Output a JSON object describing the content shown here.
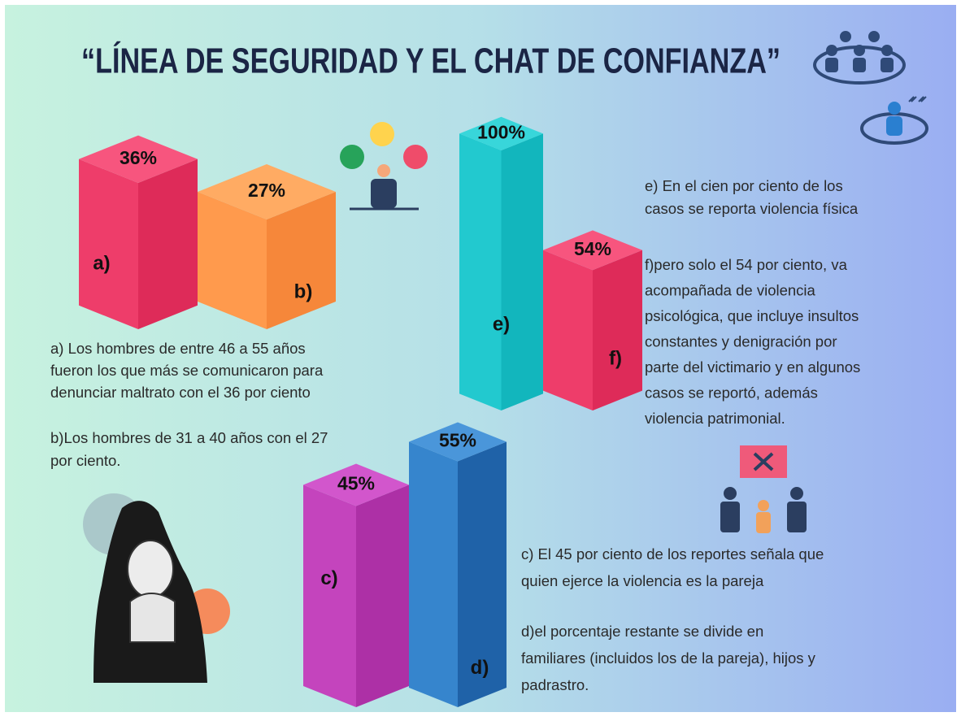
{
  "title": "“LÍNEA DE SEGURIDAD Y EL CHAT DE CONFIANZA”",
  "groups": [
    {
      "bars": [
        {
          "letter": "a)",
          "value": 36,
          "value_label": "36%",
          "colors": [
            "#f7557e",
            "#ee3d6a",
            "#de2b59"
          ]
        },
        {
          "letter": "b)",
          "value": 27,
          "value_label": "27%",
          "colors": [
            "#ffab63",
            "#ff9a4d",
            "#f6873a"
          ]
        }
      ],
      "notes": [
        [
          "a) Los hombres de entre 46 a 55 años",
          "fueron los que más se comunicaron para",
          "denunciar maltrato con el 36 por ciento"
        ],
        [
          "b)Los hombres de 31 a 40 años con el 27",
          "por ciento."
        ]
      ]
    },
    {
      "bars": [
        {
          "letter": "e)",
          "value": 100,
          "value_label": "100%",
          "colors": [
            "#38d6da",
            "#22c9cf",
            "#12b6bd"
          ]
        },
        {
          "letter": "f)",
          "value": 54,
          "value_label": "54%",
          "colors": [
            "#f7557e",
            "#ee3d6a",
            "#de2b59"
          ]
        }
      ],
      "notes": [
        [
          "e) En el cien por ciento de los",
          "casos se reporta violencia física"
        ],
        [
          "f)pero solo el 54 por ciento, va",
          "acompañada de violencia",
          "psicológica, que incluye insultos",
          "constantes y denigración por",
          "parte del victimario y en algunos",
          "casos se reportó, además",
          "violencia patrimonial."
        ]
      ]
    },
    {
      "bars": [
        {
          "letter": "c)",
          "value": 45,
          "value_label": "45%",
          "colors": [
            "#d256cc",
            "#c444bd",
            "#ad30a6"
          ]
        },
        {
          "letter": "d)",
          "value": 55,
          "value_label": "55%",
          "colors": [
            "#4a96da",
            "#3685cd",
            "#1f62a8"
          ]
        }
      ],
      "notes": [
        [
          "c) El 45 por ciento de los reportes señala que",
          "quien ejerce la violencia es la pareja"
        ],
        [
          "d)el porcentaje restante se divide en",
          "familiares (incluidos los de la pareja), hijos y",
          "padrastro."
        ]
      ]
    }
  ]
}
